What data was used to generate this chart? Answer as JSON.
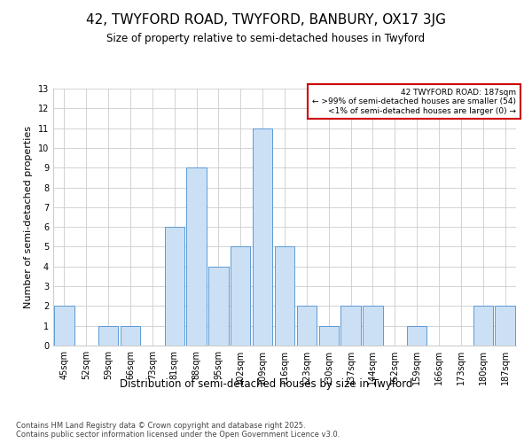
{
  "title": "42, TWYFORD ROAD, TWYFORD, BANBURY, OX17 3JG",
  "subtitle": "Size of property relative to semi-detached houses in Twyford",
  "xlabel": "Distribution of semi-detached houses by size in Twyford",
  "ylabel": "Number of semi-detached properties",
  "categories": [
    "45sqm",
    "52sqm",
    "59sqm",
    "66sqm",
    "73sqm",
    "81sqm",
    "88sqm",
    "95sqm",
    "102sqm",
    "109sqm",
    "116sqm",
    "123sqm",
    "130sqm",
    "137sqm",
    "144sqm",
    "152sqm",
    "159sqm",
    "166sqm",
    "173sqm",
    "180sqm",
    "187sqm"
  ],
  "values": [
    2,
    0,
    1,
    1,
    0,
    6,
    9,
    4,
    5,
    11,
    5,
    2,
    1,
    2,
    2,
    0,
    1,
    0,
    0,
    2,
    2
  ],
  "bar_color": "#cce0f5",
  "bar_edge_color": "#5b9bd5",
  "annotation_box_color": "#ffffff",
  "annotation_box_edge_color": "#cc0000",
  "annotation_text": "42 TWYFORD ROAD: 187sqm\n← >99% of semi-detached houses are smaller (54)\n<1% of semi-detached houses are larger (0) →",
  "annotation_fontsize": 6.5,
  "background_color": "#ffffff",
  "grid_color": "#cccccc",
  "ylim": [
    0,
    13
  ],
  "yticks": [
    0,
    1,
    2,
    3,
    4,
    5,
    6,
    7,
    8,
    9,
    10,
    11,
    12,
    13
  ],
  "footer_line1": "Contains HM Land Registry data © Crown copyright and database right 2025.",
  "footer_line2": "Contains public sector information licensed under the Open Government Licence v3.0.",
  "title_fontsize": 11,
  "subtitle_fontsize": 8.5,
  "xlabel_fontsize": 8.5,
  "ylabel_fontsize": 8,
  "tick_fontsize": 7,
  "footer_fontsize": 6
}
